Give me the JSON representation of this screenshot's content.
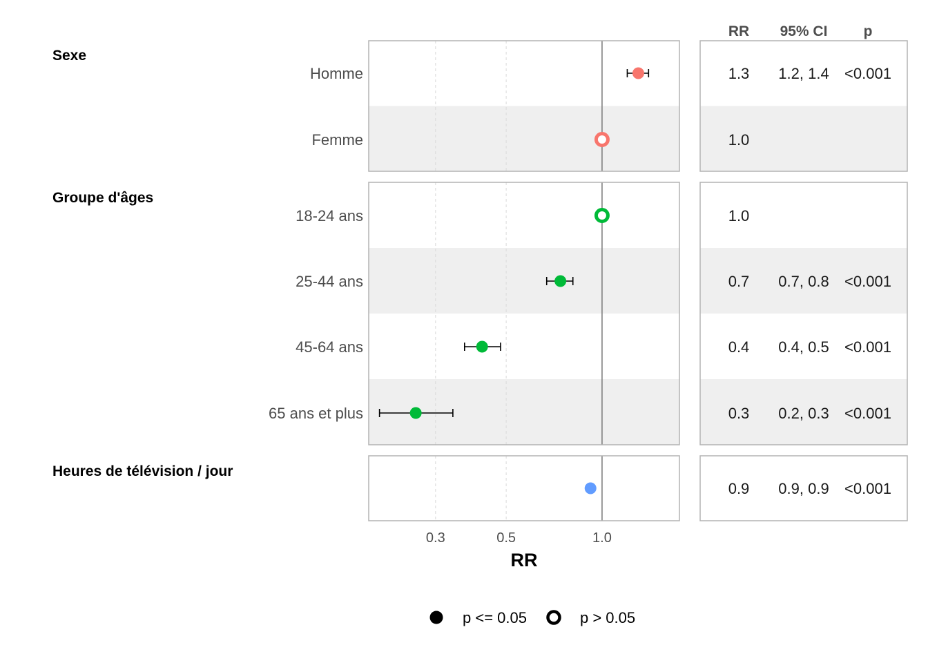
{
  "chart_data": {
    "type": "forest",
    "x_scale": "log",
    "xlim": [
      0.185,
      1.75
    ],
    "x_ticks": [
      0.3,
      0.5,
      1.0
    ],
    "x_tick_labels": [
      "0.3",
      "0.5",
      "1.0"
    ],
    "reference_line": 1.0,
    "xlabel": "RR",
    "table_headers": [
      "RR",
      "95% CI",
      "p"
    ],
    "groups": [
      {
        "label": "Sexe",
        "color": "#f8766d",
        "rows": [
          {
            "label": "Homme",
            "estimate": 1.3,
            "ci_low": 1.2,
            "ci_high": 1.4,
            "rr_text": "1.3",
            "ci_text": "1.2, 1.4",
            "p_text": "<0.001",
            "significant": true
          },
          {
            "label": "Femme",
            "estimate": 1.0,
            "ci_low": null,
            "ci_high": null,
            "rr_text": "1.0",
            "ci_text": "",
            "p_text": "",
            "significant": false
          }
        ]
      },
      {
        "label": "Groupe d'âges",
        "color": "#00ba38",
        "rows": [
          {
            "label": "18-24 ans",
            "estimate": 1.0,
            "ci_low": null,
            "ci_high": null,
            "rr_text": "1.0",
            "ci_text": "",
            "p_text": "",
            "significant": false
          },
          {
            "label": "25-44 ans",
            "estimate": 0.74,
            "ci_low": 0.67,
            "ci_high": 0.81,
            "rr_text": "0.7",
            "ci_text": "0.7, 0.8",
            "p_text": "<0.001",
            "significant": true
          },
          {
            "label": "45-64 ans",
            "estimate": 0.42,
            "ci_low": 0.37,
            "ci_high": 0.48,
            "rr_text": "0.4",
            "ci_text": "0.4, 0.5",
            "p_text": "<0.001",
            "significant": true
          },
          {
            "label": "65 ans et plus",
            "estimate": 0.26,
            "ci_low": 0.2,
            "ci_high": 0.34,
            "rr_text": "0.3",
            "ci_text": "0.2, 0.3",
            "p_text": "<0.001",
            "significant": true
          }
        ]
      },
      {
        "label": "Heures de télévision / jour",
        "color": "#619cff",
        "rows": [
          {
            "label": "",
            "estimate": 0.92,
            "ci_low": 0.9,
            "ci_high": 0.94,
            "rr_text": "0.9",
            "ci_text": "0.9, 0.9",
            "p_text": "<0.001",
            "significant": true
          }
        ]
      }
    ],
    "legend": {
      "position": "bottom",
      "entries": [
        {
          "label": "p <= 0.05",
          "style": "filled"
        },
        {
          "label": "p > 0.05",
          "style": "hollow"
        }
      ]
    },
    "stripe_color": "#efefef",
    "panel_border_color": "#b3b3b3"
  }
}
